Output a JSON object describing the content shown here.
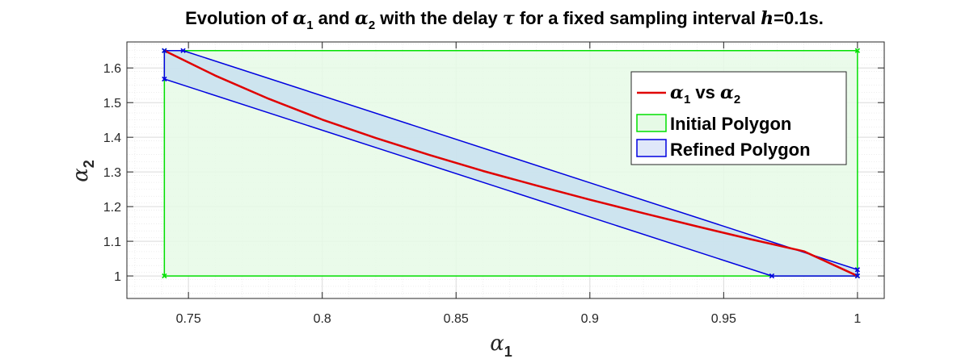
{
  "chart_data": {
    "type": "line",
    "title": {
      "part1": "Evolution of ",
      "sym1": "α",
      "sub1": "1",
      "part2": " and ",
      "sym2": "α",
      "sub2": "2",
      "part3": " with the delay ",
      "sym3": "τ",
      "part4": " for a fixed sampling interval ",
      "sym4": "h",
      "part5": "=0.1s."
    },
    "xlabel": {
      "sym": "α",
      "sub": "1"
    },
    "ylabel": {
      "sym": "α",
      "sub": "2"
    },
    "xlim": [
      0.727,
      1.01
    ],
    "ylim": [
      0.935,
      1.675
    ],
    "xticks": [
      0.75,
      0.8,
      0.85,
      0.9,
      0.95,
      1
    ],
    "xtick_labels": [
      "0.75",
      "0.8",
      "0.85",
      "0.9",
      "0.95",
      "1"
    ],
    "yticks": [
      1,
      1.1,
      1.2,
      1.3,
      1.4,
      1.5,
      1.6
    ],
    "ytick_labels": [
      "1",
      "1.1",
      "1.2",
      "1.3",
      "1.4",
      "1.5",
      "1.6"
    ],
    "grid": true,
    "minor_grid": true,
    "legend_position": "top-right",
    "series": [
      {
        "kind": "curve",
        "color": "#e00000",
        "x": [
          0.741,
          0.76,
          0.78,
          0.8,
          0.82,
          0.84,
          0.86,
          0.88,
          0.9,
          0.92,
          0.94,
          0.96,
          0.98,
          1.0
        ],
        "y": [
          1.65,
          1.578,
          1.511,
          1.451,
          1.398,
          1.349,
          1.303,
          1.261,
          1.22,
          1.181,
          1.143,
          1.106,
          1.071,
          1.0
        ]
      },
      {
        "kind": "polygon",
        "color": "#00e000",
        "fill": "#e6fae6",
        "x": [
          0.741,
          1.0,
          1.0,
          0.741
        ],
        "y": [
          1.65,
          1.65,
          1.0,
          1.0
        ]
      },
      {
        "kind": "polygon",
        "color": "#0000e0",
        "fill": "#c8dff0",
        "x": [
          0.741,
          0.748,
          1.0,
          1.0,
          0.968,
          0.741
        ],
        "y": [
          1.65,
          1.65,
          1.018,
          1.0,
          1.0,
          1.568
        ]
      }
    ],
    "legend": [
      {
        "sym": "α",
        "sub": "1",
        "mid": " vs ",
        "sym2": "α",
        "sub2": "2",
        "color": "#e00000",
        "kind": "line"
      },
      {
        "label": "Initial Polygon",
        "color": "#00e000",
        "fill": "#e6fae6",
        "kind": "patch"
      },
      {
        "label": "Refined Polygon",
        "color": "#0000e0",
        "fill": "#e0e8fa",
        "kind": "patch"
      }
    ]
  }
}
